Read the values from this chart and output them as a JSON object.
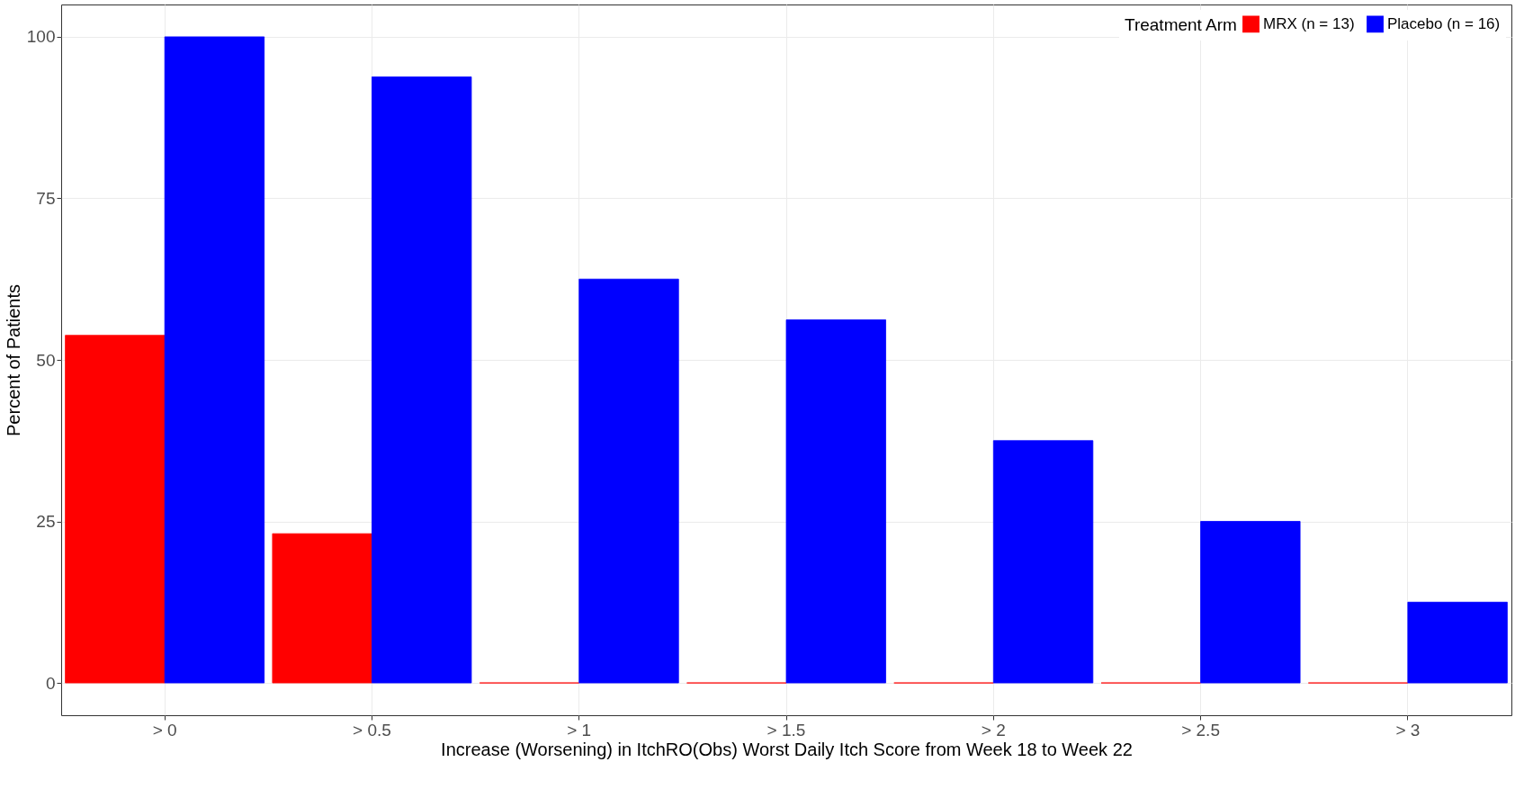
{
  "chart_data": {
    "type": "bar",
    "xlabel": "Increase (Worsening) in ItchRO(Obs) Worst Daily Itch Score from Week 18 to Week 22",
    "ylabel": "Percent of Patients",
    "legend_title": "Treatment Arm",
    "categories": [
      "> 0",
      "> 0.5",
      "> 1",
      "> 1.5",
      "> 2",
      "> 2.5",
      "> 3"
    ],
    "series": [
      {
        "name": "MRX (n = 13)",
        "color": "#ff0000",
        "values": [
          53.8,
          23.1,
          0,
          0,
          0,
          0,
          0
        ]
      },
      {
        "name": "Placebo (n = 16)",
        "color": "#0000ff",
        "values": [
          100,
          93.8,
          62.5,
          56.2,
          37.5,
          25,
          12.5
        ]
      }
    ],
    "ylim": [
      -5,
      105
    ],
    "yticks": [
      0,
      25,
      50,
      75,
      100
    ],
    "grid": true,
    "legend": "top right"
  }
}
